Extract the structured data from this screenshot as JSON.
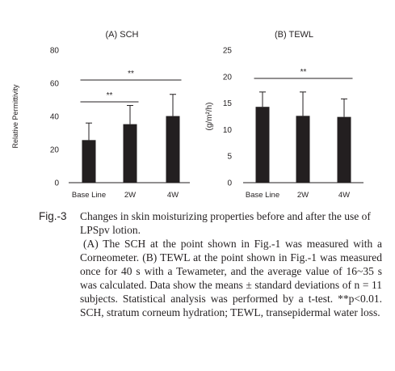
{
  "figure": {
    "label": "Fig.-3",
    "caption_title": "Changes in skin moisturizing properties before and after the use of LPSpv lotion.",
    "caption_body": "(A) The SCH at the point shown in Fig.-1 was measured with a Corneometer. (B) TEWL at the point shown in Fig.-1 was measured once for 40 s with a Tewameter, and the average value of 16~35 s was calculated. Data show the means ± standard deviations of n = 11 subjects. Statistical analysis was performed by a t-test. **p<0.01. SCH, stratum corneum hydration; TEWL, transepidermal water loss."
  },
  "colors": {
    "bar": "#231f20",
    "text": "#231f20",
    "background": "#ffffff"
  },
  "chart_data": [
    {
      "type": "bar",
      "title": "(A) SCH",
      "ylabel": "Relative Permittivity",
      "xlabel": "",
      "categories": [
        "Base Line",
        "2W",
        "4W"
      ],
      "values": [
        25.7,
        35.3,
        40.2
      ],
      "error": [
        10.3,
        11.3,
        13.1
      ],
      "ylim": [
        0,
        80
      ],
      "yticks": [
        0,
        20,
        40,
        60,
        80
      ],
      "grid": false,
      "significance": [
        {
          "from": "Base Line",
          "to": "2W",
          "label": "**"
        },
        {
          "from": "Base Line",
          "to": "4W",
          "label": "**"
        }
      ]
    },
    {
      "type": "bar",
      "title": "(B) TEWL",
      "ylabel": "(g/m²/h)",
      "xlabel": "",
      "categories": [
        "Base Line",
        "2W",
        "4W"
      ],
      "values": [
        14.3,
        12.6,
        12.4
      ],
      "error": [
        2.8,
        4.5,
        3.4
      ],
      "ylim": [
        0,
        25
      ],
      "yticks": [
        0,
        5,
        10,
        15,
        20,
        25
      ],
      "grid": false,
      "significance": [
        {
          "from": "Base Line",
          "to": "4W",
          "label": "**"
        }
      ]
    }
  ]
}
